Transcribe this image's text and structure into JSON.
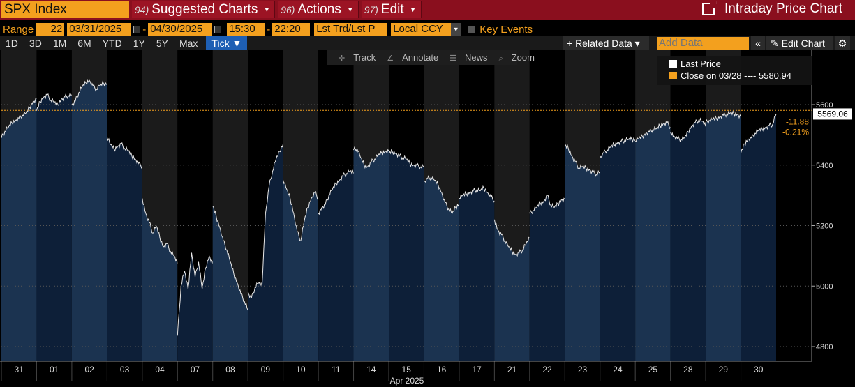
{
  "topbar": {
    "ticker": "SPX Index",
    "menus": [
      {
        "num": "94)",
        "label": "Suggested Charts"
      },
      {
        "num": "96)",
        "label": "Actions"
      },
      {
        "num": "97)",
        "label": "Edit"
      }
    ],
    "title": "Intraday Price Chart"
  },
  "range": {
    "label": "Range",
    "days": "22",
    "start_date": "03/31/2025",
    "end_date": "04/30/2025",
    "start_time": "15:30",
    "end_time": "22:20",
    "price_field": "Lst Trd/Lst P",
    "currency": "Local CCY",
    "key_events": "Key Events"
  },
  "periods": [
    "1D",
    "3D",
    "1M",
    "6M",
    "YTD",
    "1Y",
    "5Y",
    "Max"
  ],
  "tick_btn": "Tick ▼",
  "toolbar": {
    "related_data": "+ Related Data ▾",
    "add_data_placeholder": "Add Data",
    "collapse": "«",
    "edit_chart": "✎ Edit Chart",
    "gear": "⚙"
  },
  "chart_tools": [
    "Track",
    "Annotate",
    "News",
    "Zoom"
  ],
  "legend": {
    "last_price": "Last Price",
    "close_label": "Close on 03/28 ---- 5580.94"
  },
  "colors": {
    "orange": "#f3a01e",
    "topbar": "#8a0f1e",
    "area_light": "#1b3350",
    "area_dark": "#0d1f38",
    "band_grey": "#1b1b1b"
  },
  "chart_data": {
    "type": "area",
    "title": "SPX Index",
    "ylim": [
      4730,
      5680
    ],
    "yticks": [
      4800,
      5000,
      5200,
      5400,
      5600
    ],
    "reference_line": {
      "label": "Close on 03/28",
      "value": 5580.94
    },
    "last_value": "5569.06",
    "change": "-11.88",
    "change_pct": "-0.21%",
    "month_label": "Apr 2025",
    "days": [
      {
        "label": "31",
        "values": [
          5490,
          5512,
          5525,
          5540,
          5548,
          5555,
          5565,
          5572,
          5590,
          5610,
          5620
        ]
      },
      {
        "label": "01",
        "values": [
          5580,
          5610,
          5625,
          5632,
          5615,
          5608,
          5600,
          5618,
          5625,
          5630,
          5632
        ]
      },
      {
        "label": "02",
        "values": [
          5600,
          5612,
          5640,
          5660,
          5672,
          5680,
          5662,
          5650,
          5665,
          5670,
          5670
        ]
      },
      {
        "label": "03",
        "values": [
          5492,
          5468,
          5452,
          5462,
          5470,
          5455,
          5448,
          5432,
          5420,
          5405,
          5396
        ]
      },
      {
        "label": "04",
        "values": [
          5290,
          5240,
          5210,
          5175,
          5198,
          5160,
          5130,
          5140,
          5115,
          5100,
          5074
        ]
      },
      {
        "label": "07",
        "values": [
          4836,
          5000,
          5050,
          4990,
          5110,
          5030,
          5080,
          4990,
          5060,
          5100,
          5075
        ]
      },
      {
        "label": "08",
        "values": [
          5265,
          5230,
          5195,
          5150,
          5120,
          5080,
          5040,
          5010,
          4975,
          4950,
          4920
        ]
      },
      {
        "label": "09",
        "values": [
          4980,
          4960,
          4995,
          5010,
          5000,
          5240,
          5330,
          5380,
          5420,
          5445,
          5470
        ]
      },
      {
        "label": "10",
        "values": [
          5350,
          5320,
          5290,
          5240,
          5180,
          5150,
          5215,
          5260,
          5290,
          5310,
          5290
        ]
      },
      {
        "label": "11",
        "values": [
          5240,
          5260,
          5270,
          5300,
          5320,
          5338,
          5350,
          5365,
          5372,
          5380,
          5372
        ]
      },
      {
        "label": "14",
        "values": [
          5450,
          5455,
          5425,
          5400,
          5395,
          5410,
          5420,
          5432,
          5440,
          5445,
          5448
        ]
      },
      {
        "label": "15",
        "values": [
          5440,
          5445,
          5440,
          5430,
          5425,
          5420,
          5405,
          5400,
          5398,
          5394,
          5396
        ]
      },
      {
        "label": "16",
        "values": [
          5345,
          5355,
          5360,
          5350,
          5335,
          5310,
          5275,
          5255,
          5240,
          5260,
          5272
        ]
      },
      {
        "label": "17",
        "values": [
          5290,
          5300,
          5305,
          5310,
          5315,
          5318,
          5315,
          5325,
          5310,
          5295,
          5282
        ]
      },
      {
        "label": "21",
        "values": [
          5220,
          5185,
          5170,
          5150,
          5130,
          5115,
          5105,
          5110,
          5120,
          5140,
          5158
        ]
      },
      {
        "label": "22",
        "values": [
          5240,
          5250,
          5260,
          5275,
          5280,
          5300,
          5268,
          5260,
          5270,
          5285,
          5287
        ]
      },
      {
        "label": "23",
        "values": [
          5465,
          5455,
          5430,
          5410,
          5390,
          5395,
          5390,
          5385,
          5375,
          5370,
          5376
        ]
      },
      {
        "label": "24",
        "values": [
          5425,
          5440,
          5450,
          5460,
          5468,
          5475,
          5478,
          5482,
          5484,
          5485,
          5484
        ]
      },
      {
        "label": "25",
        "values": [
          5480,
          5488,
          5495,
          5505,
          5510,
          5518,
          5520,
          5530,
          5538,
          5540,
          5525
        ]
      },
      {
        "label": "28",
        "values": [
          5510,
          5495,
          5488,
          5485,
          5490,
          5510,
          5530,
          5540,
          5548,
          5545,
          5528
        ]
      },
      {
        "label": "29",
        "values": [
          5540,
          5548,
          5552,
          5555,
          5560,
          5565,
          5568,
          5572,
          5570,
          5568,
          5560
        ]
      },
      {
        "label": "30",
        "values": [
          5440,
          5470,
          5485,
          5490,
          5505,
          5515,
          5520,
          5525,
          5530,
          5535,
          5569
        ]
      }
    ]
  }
}
